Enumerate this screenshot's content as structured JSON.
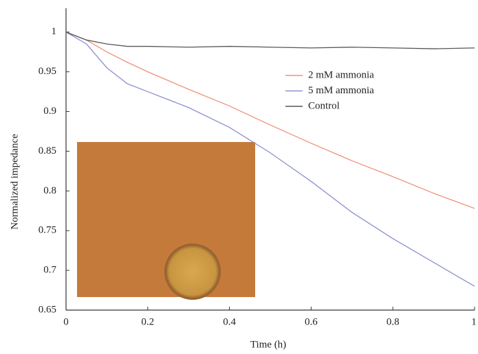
{
  "chart_data": {
    "type": "line",
    "x_label": "Time (h)",
    "y_label": "Normalized impedance",
    "x": [
      0,
      0.05,
      0.1,
      0.15,
      0.2,
      0.3,
      0.4,
      0.5,
      0.6,
      0.7,
      0.8,
      0.9,
      1
    ],
    "series": [
      {
        "name": "2 mM ammonia",
        "color": "#f0907a",
        "values": [
          1,
          0.99,
          0.975,
          0.962,
          0.95,
          0.928,
          0.907,
          0.883,
          0.86,
          0.838,
          0.818,
          0.797,
          0.778
        ]
      },
      {
        "name": "5 mM ammonia",
        "color": "#8a8fd0",
        "values": [
          1,
          0.985,
          0.955,
          0.935,
          0.925,
          0.905,
          0.88,
          0.848,
          0.812,
          0.773,
          0.74,
          0.71,
          0.68
        ]
      },
      {
        "name": "Control",
        "color": "#555555",
        "values": [
          1,
          0.99,
          0.985,
          0.982,
          0.982,
          0.981,
          0.982,
          0.981,
          0.98,
          0.981,
          0.98,
          0.979,
          0.98
        ]
      }
    ],
    "xlim": [
      0,
      1
    ],
    "xticks": [
      0,
      0.2,
      0.4,
      0.6,
      0.8,
      1
    ],
    "ylim": [
      0.65,
      1.03
    ],
    "yticks": [
      0.65,
      0.7,
      0.75,
      0.8,
      0.85,
      0.9,
      0.95,
      1
    ]
  }
}
